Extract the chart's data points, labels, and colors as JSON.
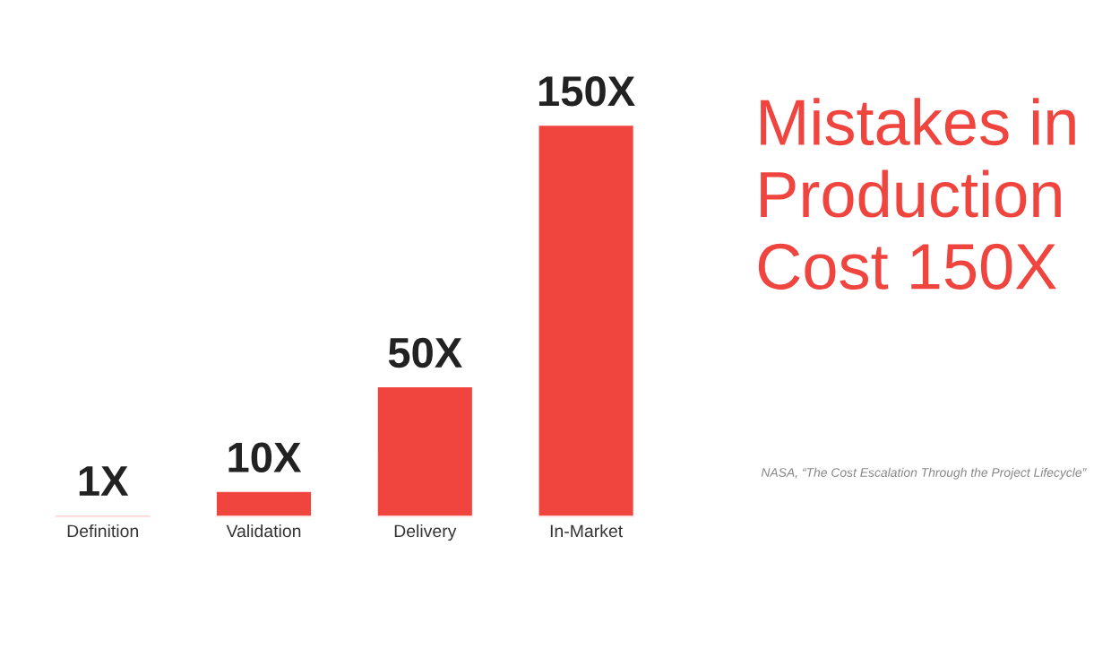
{
  "chart_data": {
    "type": "bar",
    "title": "Mistakes in Production Cost 150X",
    "categories": [
      "Definition",
      "Validation",
      "Delivery",
      "In-Market"
    ],
    "values": [
      1,
      10,
      50,
      150
    ],
    "value_labels": [
      "1X",
      "10X",
      "50X",
      "150X"
    ],
    "color": "#f0443f",
    "annotations": [
      "NASA, “The Cost Escalation Through the Project Lifecycle”"
    ],
    "grid": false,
    "legend": false
  }
}
